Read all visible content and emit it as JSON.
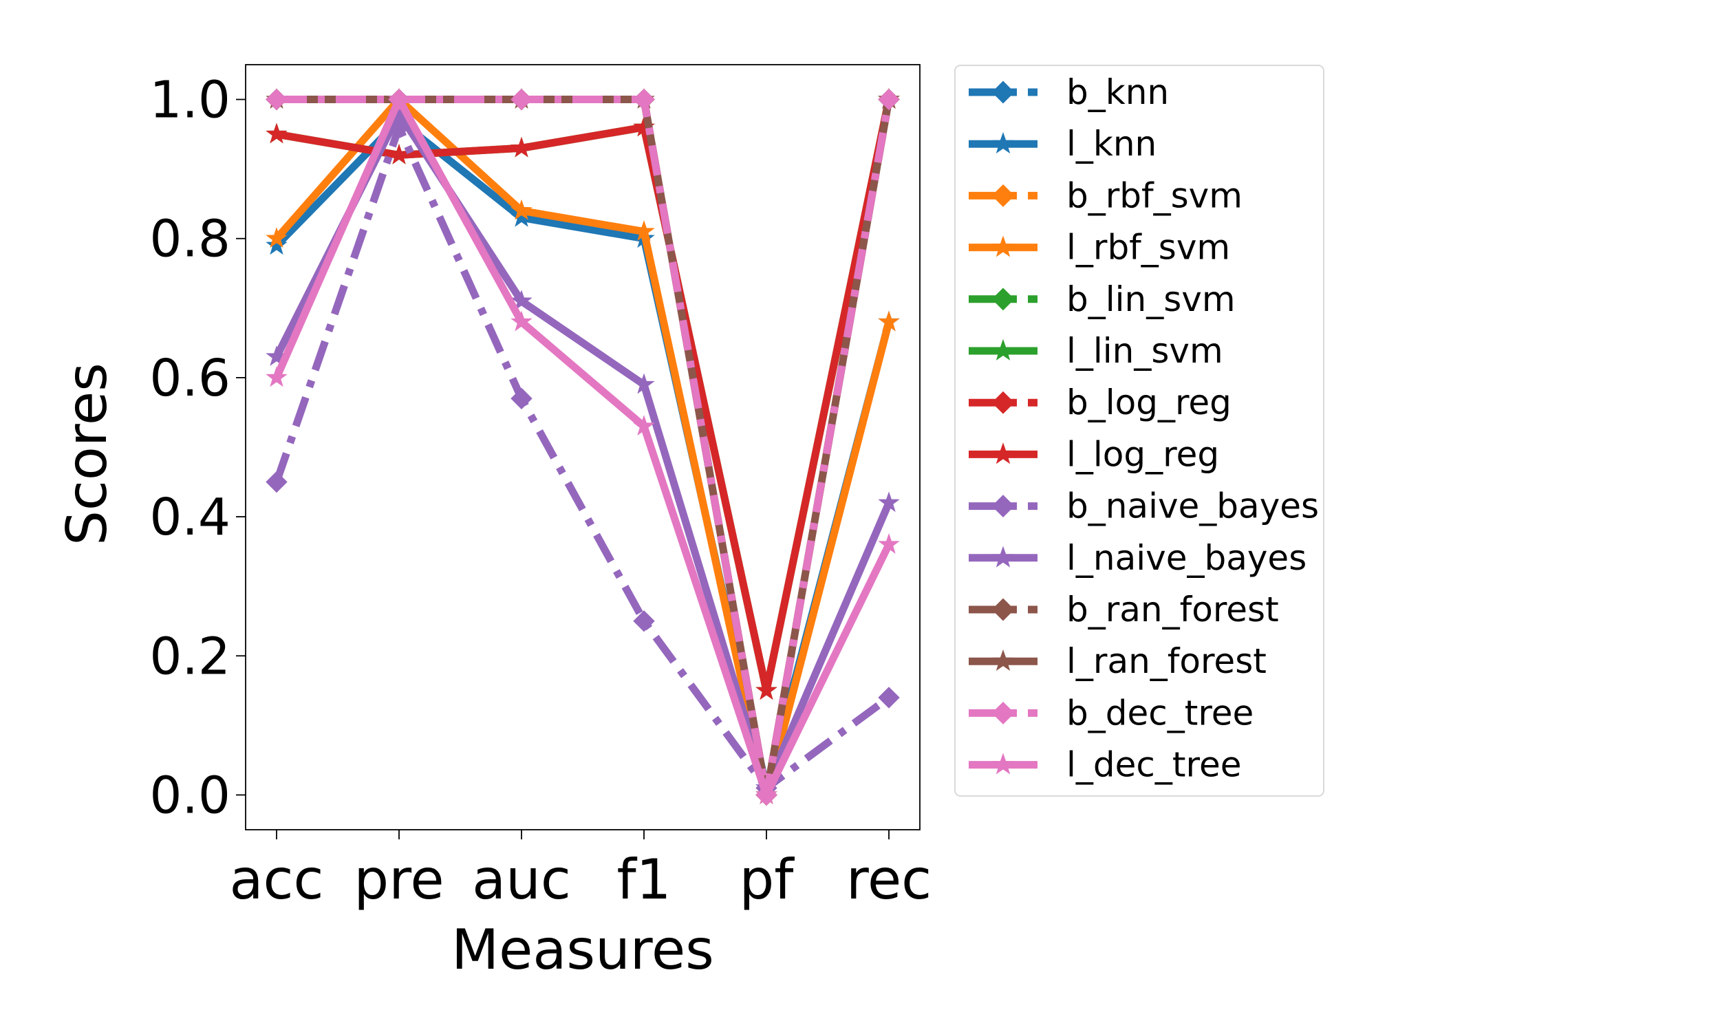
{
  "chart_data": {
    "type": "line",
    "xlabel": "Measures",
    "ylabel": "Scores",
    "categories": [
      "acc",
      "pre",
      "auc",
      "f1",
      "pf",
      "rec"
    ],
    "ylim": [
      -0.05,
      1.05
    ],
    "yticks": [
      0.0,
      0.2,
      0.4,
      0.6,
      0.8,
      1.0
    ],
    "ytick_labels": [
      "0.0",
      "0.2",
      "0.4",
      "0.6",
      "0.8",
      "1.0"
    ],
    "grid": false,
    "legend_placement": "outside-right-top",
    "series": [
      {
        "name": "b_knn",
        "color": "#1f77b4",
        "style": "dashdot",
        "marker": "diamond",
        "values": [
          1.0,
          1.0,
          1.0,
          1.0,
          0.0,
          1.0
        ]
      },
      {
        "name": "l_knn",
        "color": "#1f77b4",
        "style": "solid",
        "marker": "star",
        "values": [
          0.79,
          0.97,
          0.83,
          0.8,
          0.01,
          0.68
        ]
      },
      {
        "name": "b_rbf_svm",
        "color": "#ff7f0e",
        "style": "dashdot",
        "marker": "diamond",
        "values": [
          1.0,
          1.0,
          1.0,
          1.0,
          0.0,
          1.0
        ]
      },
      {
        "name": "l_rbf_svm",
        "color": "#ff7f0e",
        "style": "solid",
        "marker": "star",
        "values": [
          0.8,
          1.0,
          0.84,
          0.81,
          0.0,
          0.68
        ]
      },
      {
        "name": "b_lin_svm",
        "color": "#2ca02c",
        "style": "dashdot",
        "marker": "diamond",
        "values": [
          1.0,
          1.0,
          1.0,
          1.0,
          0.0,
          1.0
        ]
      },
      {
        "name": "l_lin_svm",
        "color": "#2ca02c",
        "style": "solid",
        "marker": "star",
        "values": [
          0.95,
          0.92,
          0.93,
          0.96,
          0.15,
          1.0
        ]
      },
      {
        "name": "b_log_reg",
        "color": "#d62728",
        "style": "dashdot",
        "marker": "diamond",
        "values": [
          1.0,
          1.0,
          1.0,
          1.0,
          0.0,
          1.0
        ]
      },
      {
        "name": "l_log_reg",
        "color": "#d62728",
        "style": "solid",
        "marker": "star",
        "values": [
          0.95,
          0.92,
          0.93,
          0.96,
          0.15,
          1.0
        ]
      },
      {
        "name": "b_naive_bayes",
        "color": "#9467bd",
        "style": "dashdot",
        "marker": "diamond",
        "values": [
          0.45,
          0.96,
          0.57,
          0.25,
          0.01,
          0.14
        ]
      },
      {
        "name": "l_naive_bayes",
        "color": "#9467bd",
        "style": "solid",
        "marker": "star",
        "values": [
          0.63,
          0.98,
          0.71,
          0.59,
          0.01,
          0.42
        ]
      },
      {
        "name": "b_ran_forest",
        "color": "#8c564b",
        "style": "dashdot",
        "marker": "diamond",
        "values": [
          1.0,
          1.0,
          1.0,
          1.0,
          0.0,
          1.0
        ]
      },
      {
        "name": "l_ran_forest",
        "color": "#8c564b",
        "style": "solid",
        "marker": "star",
        "values": [
          1.0,
          1.0,
          1.0,
          1.0,
          0.0,
          1.0
        ]
      },
      {
        "name": "b_dec_tree",
        "color": "#e377c2",
        "style": "dashdot",
        "marker": "diamond",
        "values": [
          1.0,
          1.0,
          1.0,
          1.0,
          0.0,
          1.0
        ]
      },
      {
        "name": "l_dec_tree",
        "color": "#e377c2",
        "style": "solid",
        "marker": "star",
        "values": [
          0.6,
          1.0,
          0.68,
          0.53,
          0.0,
          0.36
        ]
      }
    ]
  }
}
